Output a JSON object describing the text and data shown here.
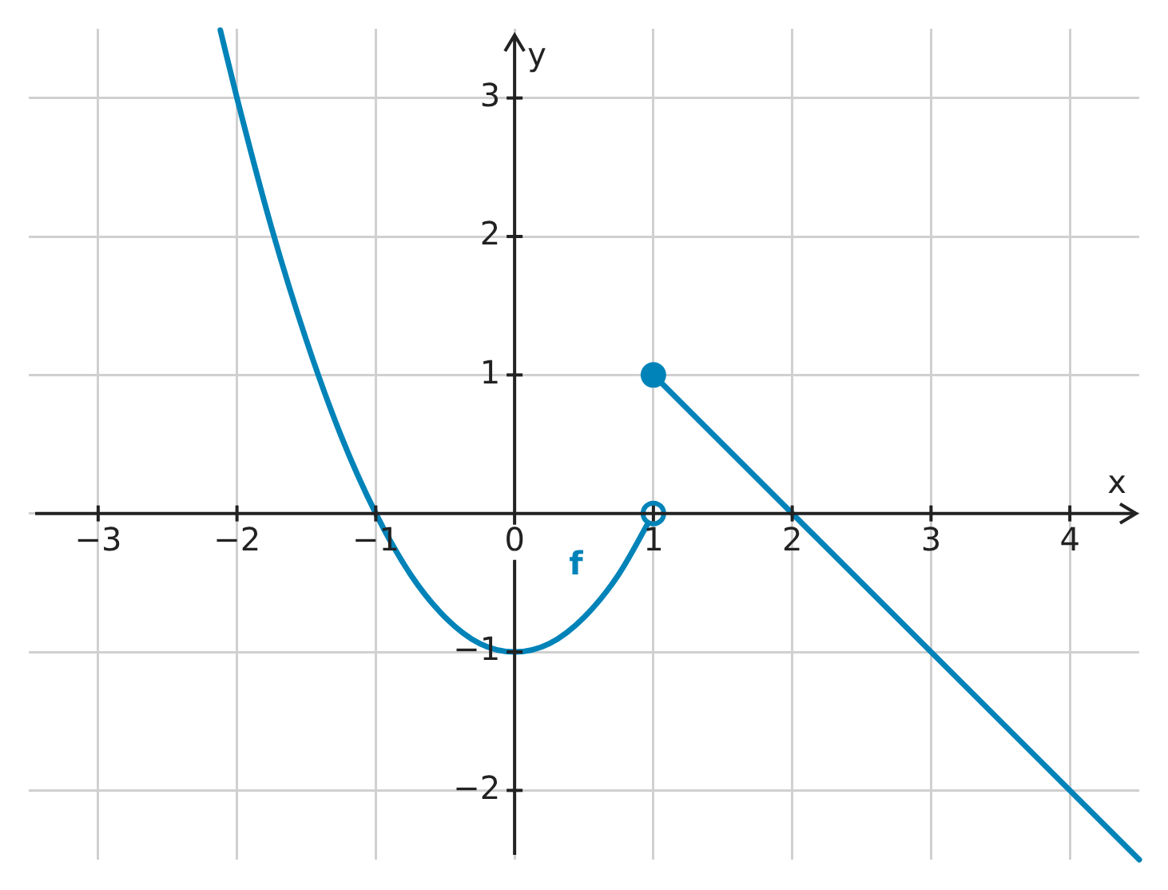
{
  "chart_data": {
    "type": "line",
    "xlabel": "x",
    "ylabel": "y",
    "xlim": [
      -3.5,
      4.5
    ],
    "ylim": [
      -2.5,
      3.5
    ],
    "xticks": [
      {
        "value": -3,
        "label": "−3"
      },
      {
        "value": -2,
        "label": "−2"
      },
      {
        "value": -1,
        "label": "−1"
      },
      {
        "value": 0,
        "label": "0"
      },
      1,
      2,
      3,
      4
    ],
    "yticks": [
      {
        "value": -2,
        "label": "−2"
      },
      {
        "value": -1,
        "label": "−1"
      },
      {
        "value": 0,
        "label": null
      },
      1,
      2,
      3
    ],
    "grid": true,
    "legend": false,
    "line_style": "solid",
    "series": [
      {
        "name": "f",
        "color": "#0083b8",
        "marker": "none",
        "x": [
          -2.12,
          -2,
          -1.75,
          -1.5,
          -1.25,
          -1,
          -0.75,
          -0.5,
          -0.25,
          0,
          0.25,
          0.5,
          0.75,
          1
        ],
        "values": [
          3.49,
          3,
          2.06,
          1.25,
          0.56,
          0,
          -0.44,
          -0.75,
          -0.94,
          -1,
          -0.94,
          -0.75,
          -0.44,
          0
        ]
      },
      {
        "color": "#0083b8",
        "marker": "none",
        "x": [
          1,
          4.5
        ],
        "values": [
          1,
          -2.5
        ]
      },
      {
        "type": "scatter",
        "color": "#0083b8",
        "marker": "circle",
        "x": [
          1
        ],
        "values": [
          1
        ]
      },
      {
        "type": "scatter",
        "color": "#0083b8",
        "colors": [
          "#ffffff"
        ],
        "marker": "circle",
        "x": [
          1
        ],
        "values": [
          0
        ]
      }
    ]
  }
}
